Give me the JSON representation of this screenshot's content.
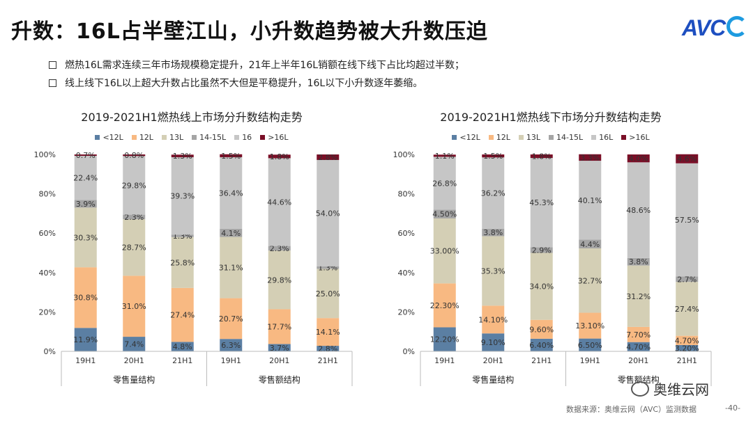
{
  "page": {
    "title": "升数：16L占半壁江山，小升数趋势被大升数压迫",
    "logo": "AVC",
    "bullets": [
      "燃热16L需求连续三年市场规模稳定提升，21年上半年16L销额在线下线下占比均超过半数；",
      "线上线下16L以上超大升数占比虽然不大但是平稳提升，16L以下小升数逐年萎缩。"
    ],
    "footer": "数据来源：奥维云网（AVC）监测数据",
    "page_number": "-40-",
    "wechat_label": "奥维云网",
    "colors": [
      "#5b7fa3",
      "#f8b982",
      "#d4cfb5",
      "#a5a5a5",
      "#c6c6c6",
      "#7a0f27"
    ]
  },
  "chart_data": [
    {
      "type": "stacked-bar",
      "title": "2019-2021H1燃热线上市场分升数结构走势",
      "legend": [
        "<12L",
        "12L",
        "13L",
        "14-15L",
        "16",
        ">16L"
      ],
      "categories": [
        "19H1",
        "20H1",
        "21H1",
        "19H1",
        "20H1",
        "21H1"
      ],
      "groups": [
        {
          "label": "零售量结构",
          "span": 3
        },
        {
          "label": "零售额结构",
          "span": 3
        }
      ],
      "yticks": [
        "0%",
        "20%",
        "40%",
        "60%",
        "80%",
        "100%"
      ],
      "ylim": [
        0,
        100
      ],
      "series": [
        {
          "name": "<12L",
          "values": [
            11.9,
            7.4,
            4.8,
            6.3,
            3.7,
            2.8
          ],
          "labels": [
            "11.9%",
            "7.4%",
            "4.8%",
            "6.3%",
            "3.7%",
            "2.8%"
          ]
        },
        {
          "name": "12L",
          "values": [
            30.8,
            31.0,
            27.4,
            20.7,
            17.7,
            14.1
          ],
          "labels": [
            "30.8%",
            "31.0%",
            "27.4%",
            "20.7%",
            "17.7%",
            "14.1%"
          ]
        },
        {
          "name": "13L",
          "values": [
            30.3,
            28.7,
            25.8,
            31.1,
            29.8,
            25.0
          ],
          "labels": [
            "30.3%",
            "28.7%",
            "25.8%",
            "31.1%",
            "29.8%",
            "25.0%"
          ]
        },
        {
          "name": "14-15L",
          "values": [
            3.9,
            2.3,
            1.3,
            4.1,
            2.3,
            1.3
          ],
          "labels": [
            "3.9%",
            "2.3%",
            "1.3%",
            "4.1%",
            "2.3%",
            "1.3%"
          ]
        },
        {
          "name": "16",
          "values": [
            22.4,
            29.8,
            39.3,
            36.4,
            44.6,
            54.0
          ],
          "labels": [
            "22.4%",
            "29.8%",
            "39.3%",
            "36.4%",
            "44.6%",
            "54.0%"
          ]
        },
        {
          "name": ">16L",
          "values": [
            0.7,
            0.8,
            1.3,
            1.5,
            1.8,
            2.8
          ],
          "labels": [
            "0.7%",
            "0.8%",
            "1.3%",
            "1.5%",
            "1.8%",
            "2.8%"
          ]
        }
      ]
    },
    {
      "type": "stacked-bar",
      "title": "2019-2021H1燃热线下市场分升数结构走势",
      "legend": [
        "<12L",
        "12L",
        "13L",
        "14-15L",
        "16L",
        ">16L"
      ],
      "categories": [
        "19H1",
        "20H1",
        "21H1",
        "19H1",
        "20H1",
        "21H1"
      ],
      "groups": [
        {
          "label": "零售量结构",
          "span": 3
        },
        {
          "label": "零售额结构",
          "span": 3
        }
      ],
      "yticks": [
        "0%",
        "20%",
        "40%",
        "60%",
        "80%",
        "100%"
      ],
      "ylim": [
        0,
        100
      ],
      "series": [
        {
          "name": "<12L",
          "values": [
            12.2,
            9.1,
            6.4,
            6.5,
            4.7,
            3.2
          ],
          "labels": [
            "12.20%",
            "9.10%",
            "6.40%",
            "6.50%",
            "4.70%",
            "3.20%"
          ]
        },
        {
          "name": "12L",
          "values": [
            22.3,
            14.1,
            9.6,
            13.1,
            7.7,
            4.7
          ],
          "labels": [
            "22.30%",
            "14.10%",
            "9.60%",
            "13.10%",
            "7.70%",
            "4.70%"
          ]
        },
        {
          "name": "13L",
          "values": [
            33.0,
            35.3,
            34.0,
            32.7,
            31.2,
            27.4
          ],
          "labels": [
            "33.00%",
            "35.3%",
            "34.0%",
            "32.7%",
            "31.2%",
            "27.4%"
          ]
        },
        {
          "name": "14-15L",
          "values": [
            4.5,
            3.8,
            2.9,
            4.4,
            3.8,
            2.7
          ],
          "labels": [
            "4.50%",
            "3.8%",
            "2.9%",
            "4.4%",
            "3.8%",
            "2.7%"
          ]
        },
        {
          "name": "16L",
          "values": [
            26.8,
            36.2,
            45.3,
            40.1,
            48.6,
            57.5
          ],
          "labels": [
            "26.8%",
            "36.2%",
            "45.3%",
            "40.1%",
            "48.6%",
            "57.5%"
          ]
        },
        {
          "name": ">16L",
          "values": [
            1.1,
            1.5,
            1.8,
            3.3,
            4.0,
            4.6
          ],
          "labels": [
            "1.1%",
            "1.5%",
            "1.8%",
            "3.3%",
            "4.0%",
            "4.6%"
          ]
        }
      ]
    }
  ]
}
